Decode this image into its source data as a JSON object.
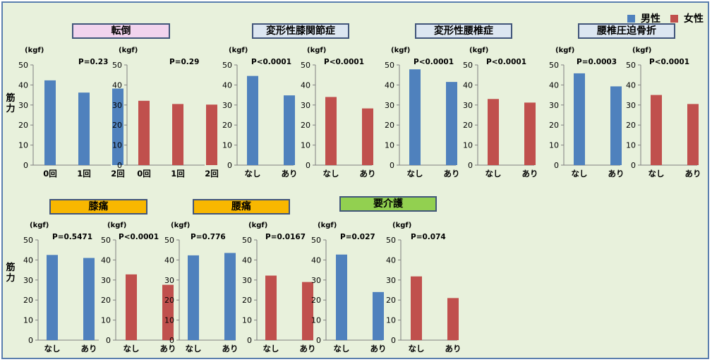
{
  "legend": {
    "male": "男性",
    "female": "女性"
  },
  "colors": {
    "male": "#4f81bd",
    "female": "#c0504d",
    "axis": "#7f7f7f",
    "tick_text": "#000000"
  },
  "ylabel_side": "筋力",
  "categories_titles": [
    {
      "title": "転倒",
      "color": "#f2d4ee"
    },
    {
      "title": "変形性膝関節症",
      "color": "#dce6f1"
    },
    {
      "title": "変形性腰椎症",
      "color": "#dce6f1"
    },
    {
      "title": "腰椎圧迫骨折",
      "color": "#dce6f1"
    },
    {
      "title": "膝痛",
      "color": "#f8b700"
    },
    {
      "title": "腰痛",
      "color": "#f8b700"
    },
    {
      "title": "要介護",
      "color": "#92d050"
    }
  ],
  "chart_data": [
    {
      "type": "bar",
      "group": "転倒",
      "series": [
        {
          "name": "男性",
          "values": [
            42.3,
            36.2,
            38.2
          ]
        }
      ],
      "categories": [
        "0回",
        "1回",
        "2回"
      ],
      "ylabel": "(kgf)",
      "ylim": [
        0,
        50
      ],
      "yticks": [
        0,
        10,
        20,
        30,
        40,
        50
      ],
      "pvalue": "P=0.23"
    },
    {
      "type": "bar",
      "group": "転倒",
      "series": [
        {
          "name": "女性",
          "values": [
            32.1,
            30.5,
            30.2
          ]
        }
      ],
      "categories": [
        "0回",
        "1回",
        "2回"
      ],
      "ylabel": "(kgf)",
      "ylim": [
        0,
        50
      ],
      "yticks": [
        0,
        10,
        20,
        30,
        40,
        50
      ],
      "pvalue": "P=0.29"
    },
    {
      "type": "bar",
      "group": "変形性膝関節症",
      "series": [
        {
          "name": "男性",
          "values": [
            44.5,
            34.8
          ]
        }
      ],
      "categories": [
        "なし",
        "あり"
      ],
      "ylabel": "(kgf)",
      "ylim": [
        0,
        50
      ],
      "yticks": [
        0,
        10,
        20,
        30,
        40,
        50
      ],
      "pvalue": "P<0.0001"
    },
    {
      "type": "bar",
      "group": "変形性膝関節症",
      "series": [
        {
          "name": "女性",
          "values": [
            34.0,
            28.3
          ]
        }
      ],
      "categories": [
        "なし",
        "あり"
      ],
      "ylabel": "(kgf)",
      "ylim": [
        0,
        50
      ],
      "yticks": [
        0,
        10,
        20,
        30,
        40,
        50
      ],
      "pvalue": "P<0.0001"
    },
    {
      "type": "bar",
      "group": "変形性腰椎症",
      "series": [
        {
          "name": "男性",
          "values": [
            47.8,
            41.5
          ]
        }
      ],
      "categories": [
        "なし",
        "あり"
      ],
      "ylabel": "(kgf)",
      "ylim": [
        0,
        50
      ],
      "yticks": [
        0,
        10,
        20,
        30,
        40,
        50
      ],
      "pvalue": "P<0.0001"
    },
    {
      "type": "bar",
      "group": "変形性腰椎症",
      "series": [
        {
          "name": "女性",
          "values": [
            33.0,
            31.2
          ]
        }
      ],
      "categories": [
        "なし",
        "あり"
      ],
      "ylabel": "(kgf)",
      "ylim": [
        0,
        50
      ],
      "yticks": [
        0,
        10,
        20,
        30,
        40,
        50
      ],
      "pvalue": "P<0.0001"
    },
    {
      "type": "bar",
      "group": "腰椎圧迫骨折",
      "series": [
        {
          "name": "男性",
          "values": [
            45.8,
            39.3
          ]
        }
      ],
      "categories": [
        "なし",
        "あり"
      ],
      "ylabel": "(kgf)",
      "ylim": [
        0,
        50
      ],
      "yticks": [
        0,
        10,
        20,
        30,
        40,
        50
      ],
      "pvalue": "P=0.0003"
    },
    {
      "type": "bar",
      "group": "腰椎圧迫骨折",
      "series": [
        {
          "name": "女性",
          "values": [
            35.0,
            30.5
          ]
        }
      ],
      "categories": [
        "なし",
        "あり"
      ],
      "ylabel": "(kgf)",
      "ylim": [
        0,
        50
      ],
      "yticks": [
        0,
        10,
        20,
        30,
        40,
        50
      ],
      "pvalue": "P<0.0001"
    },
    {
      "type": "bar",
      "group": "膝痛",
      "series": [
        {
          "name": "男性",
          "values": [
            42.5,
            41.0
          ]
        }
      ],
      "categories": [
        "なし",
        "あり"
      ],
      "ylabel": "(kgf)",
      "ylim": [
        0,
        50
      ],
      "yticks": [
        0,
        10,
        20,
        30,
        40,
        50
      ],
      "pvalue": "P=0.5471"
    },
    {
      "type": "bar",
      "group": "膝痛",
      "series": [
        {
          "name": "女性",
          "values": [
            32.8,
            27.6
          ]
        }
      ],
      "categories": [
        "なし",
        "あり"
      ],
      "ylabel": "(kgf)",
      "ylim": [
        0,
        50
      ],
      "yticks": [
        0,
        10,
        20,
        30,
        40,
        50
      ],
      "pvalue": "P<0.0001"
    },
    {
      "type": "bar",
      "group": "腰痛",
      "series": [
        {
          "name": "男性",
          "values": [
            42.3,
            43.5
          ]
        }
      ],
      "categories": [
        "なし",
        "あり"
      ],
      "ylabel": "(kgf)",
      "ylim": [
        0,
        50
      ],
      "yticks": [
        0,
        10,
        20,
        30,
        40,
        50
      ],
      "pvalue": "P=0.776"
    },
    {
      "type": "bar",
      "group": "腰痛",
      "series": [
        {
          "name": "女性",
          "values": [
            32.2,
            29.0
          ]
        }
      ],
      "categories": [
        "なし",
        "あり"
      ],
      "ylabel": "(kgf)",
      "ylim": [
        0,
        50
      ],
      "yticks": [
        0,
        10,
        20,
        30,
        40,
        50
      ],
      "pvalue": "P=0.0167"
    },
    {
      "type": "bar",
      "group": "要介護",
      "series": [
        {
          "name": "男性",
          "values": [
            42.7,
            24.0
          ]
        }
      ],
      "categories": [
        "なし",
        "あり"
      ],
      "ylabel": "(kgf)",
      "ylim": [
        0,
        50
      ],
      "yticks": [
        0,
        10,
        20,
        30,
        40,
        50
      ],
      "pvalue": "P=0.027"
    },
    {
      "type": "bar",
      "group": "要介護",
      "series": [
        {
          "name": "女性",
          "values": [
            31.8,
            21.0
          ]
        }
      ],
      "categories": [
        "なし",
        "あり"
      ],
      "ylabel": "(kgf)",
      "ylim": [
        0,
        50
      ],
      "yticks": [
        0,
        10,
        20,
        30,
        40,
        50
      ],
      "pvalue": "P=0.074"
    }
  ]
}
